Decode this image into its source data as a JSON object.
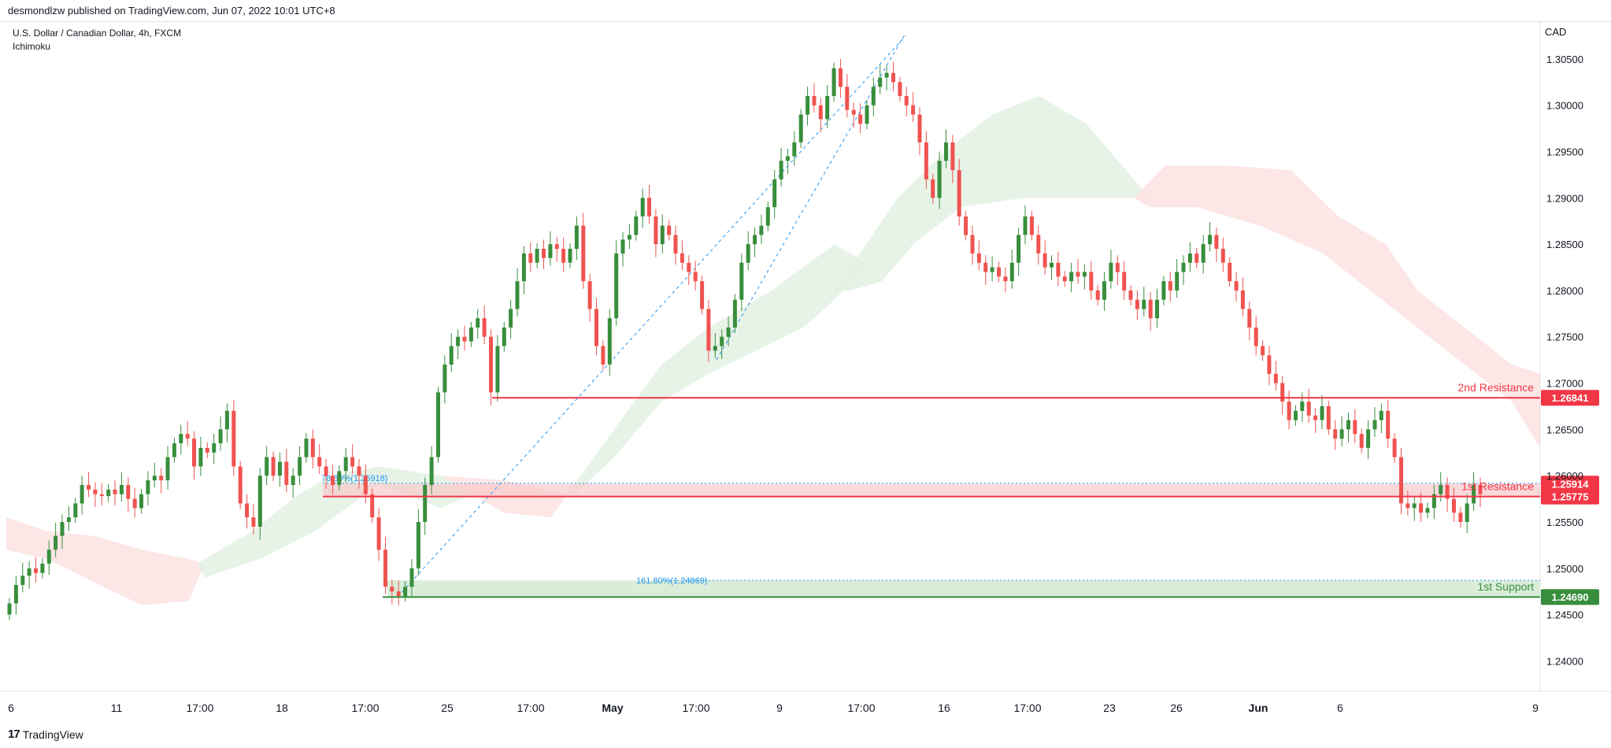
{
  "header": {
    "publish_line": "desmondlzw published on TradingView.com, Jun 07, 2022 10:01 UTC+8"
  },
  "legend": {
    "symbol_line": "U.S. Dollar / Canadian Dollar, 4h, FXCM",
    "indicator": "Ichimoku"
  },
  "footer": {
    "logo_mark": "17",
    "logo_text": "TradingView"
  },
  "colors": {
    "up": "#388e3c",
    "down": "#ef5350",
    "resistance": "#f23645",
    "support": "#388e3c",
    "fib": "#2196f3",
    "cloud_bull": "#e3f1e3",
    "cloud_bear": "#fde2e2"
  },
  "chart_data": {
    "type": "candlestick",
    "symbol": "U.S. Dollar / Canadian Dollar",
    "timeframe": "4h",
    "currency_label": "CAD",
    "y_ticks": [
      "1.30500",
      "1.30000",
      "1.29500",
      "1.29000",
      "1.28500",
      "1.28000",
      "1.27500",
      "1.27000",
      "1.26500",
      "1.26000",
      "1.25500",
      "1.25000",
      "1.24500",
      "1.24000"
    ],
    "ylim": [
      1.2385,
      1.3078
    ],
    "x_ticks": [
      "6",
      "11",
      "17:00",
      "18",
      "17:00",
      "25",
      "17:00",
      "May",
      "17:00",
      "9",
      "17:00",
      "16",
      "17:00",
      "23",
      "26",
      "Jun",
      "6",
      "9"
    ],
    "levels": [
      {
        "label": "2nd Resistance",
        "value": "1.26841",
        "price": 1.26841,
        "kind": "resistance"
      },
      {
        "label": "1st Resistance",
        "value": "1.25775",
        "price": 1.25775,
        "kind": "resistance"
      },
      {
        "label": "",
        "value": "1.25914",
        "price": 1.25914,
        "kind": "resistance"
      },
      {
        "label": "1st Support",
        "value": "1.24690",
        "price": 1.2469,
        "kind": "support"
      }
    ],
    "fib_labels": [
      {
        "text": "78.60%(1.25918)",
        "price": 1.25918
      },
      {
        "text": "161.80%(1.24869)",
        "price": 1.24869
      }
    ],
    "closes": [
      1.2462,
      1.2482,
      1.2492,
      1.25,
      1.2495,
      1.2505,
      1.252,
      1.2535,
      1.255,
      1.2555,
      1.257,
      1.259,
      1.2585,
      1.258,
      1.2578,
      1.2585,
      1.258,
      1.259,
      1.2575,
      1.2565,
      1.258,
      1.2595,
      1.26,
      1.2595,
      1.262,
      1.2635,
      1.2645,
      1.264,
      1.261,
      1.263,
      1.2625,
      1.2635,
      1.265,
      1.267,
      1.261,
      1.257,
      1.2555,
      1.2545,
      1.26,
      1.262,
      1.26,
      1.2615,
      1.259,
      1.26,
      1.262,
      1.264,
      1.262,
      1.261,
      1.26,
      1.259,
      1.2605,
      1.262,
      1.261,
      1.26,
      1.258,
      1.2555,
      1.252,
      1.248,
      1.2475,
      1.247,
      1.248,
      1.25,
      1.255,
      1.259,
      1.262,
      1.269,
      1.272,
      1.274,
      1.275,
      1.2745,
      1.276,
      1.277,
      1.275,
      1.269,
      1.274,
      1.276,
      1.278,
      1.281,
      1.284,
      1.283,
      1.2845,
      1.2835,
      1.285,
      1.2845,
      1.283,
      1.2845,
      1.287,
      1.281,
      1.278,
      1.274,
      1.272,
      1.277,
      1.284,
      1.2855,
      1.286,
      1.288,
      1.29,
      1.288,
      1.285,
      1.287,
      1.286,
      1.284,
      1.283,
      1.282,
      1.281,
      1.278,
      1.2735,
      1.274,
      1.275,
      1.276,
      1.279,
      1.283,
      1.285,
      1.286,
      1.287,
      1.289,
      1.292,
      1.294,
      1.2945,
      1.296,
      1.299,
      1.301,
      1.3,
      1.2985,
      1.301,
      1.304,
      1.302,
      1.2995,
      1.299,
      1.298,
      1.3,
      1.302,
      1.303,
      1.3035,
      1.3025,
      1.301,
      1.3,
      1.299,
      1.296,
      1.292,
      1.29,
      1.294,
      1.296,
      1.293,
      1.288,
      1.286,
      1.284,
      1.283,
      1.282,
      1.2825,
      1.2815,
      1.281,
      1.283,
      1.286,
      1.288,
      1.286,
      1.284,
      1.2825,
      1.283,
      1.2815,
      1.281,
      1.282,
      1.2815,
      1.282,
      1.28,
      1.279,
      1.281,
      1.283,
      1.282,
      1.28,
      1.279,
      1.278,
      1.279,
      1.277,
      1.279,
      1.281,
      1.28,
      1.282,
      1.283,
      1.284,
      1.283,
      1.285,
      1.286,
      1.2845,
      1.283,
      1.281,
      1.28,
      1.278,
      1.276,
      1.274,
      1.273,
      1.271,
      1.27,
      1.268,
      1.266,
      1.267,
      1.268,
      1.2665,
      1.266,
      1.2675,
      1.265,
      1.264,
      1.265,
      1.266,
      1.2645,
      1.263,
      1.265,
      1.266,
      1.267,
      1.264,
      1.262,
      1.257,
      1.2565,
      1.257,
      1.256,
      1.2565,
      1.258,
      1.259,
      1.2575,
      1.256,
      1.255,
      1.257,
      1.259,
      1.258
    ]
  }
}
